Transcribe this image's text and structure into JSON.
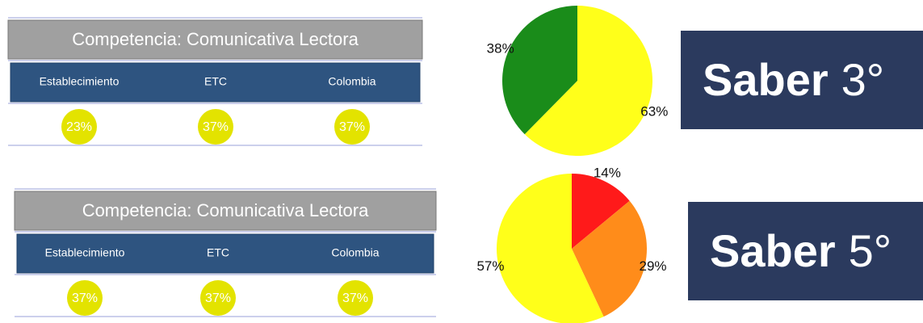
{
  "panels": [
    {
      "title": "Competencia: Comunicativa Lectora",
      "columns": [
        "Establecimiento",
        "ETC",
        "Colombia"
      ],
      "values": [
        "23%",
        "37%",
        "37%"
      ],
      "badge": {
        "word": "Saber",
        "grade": "3°"
      }
    },
    {
      "title": "Competencia: Comunicativa Lectora",
      "columns": [
        "Establecimiento",
        "ETC",
        "Colombia"
      ],
      "values": [
        "37%",
        "37%",
        "37%"
      ],
      "badge": {
        "word": "Saber",
        "grade": "5°"
      }
    }
  ],
  "chart_data": [
    {
      "type": "pie",
      "values": [
        63,
        38
      ],
      "value_labels": [
        "63%",
        "38%"
      ],
      "colors": [
        "#ffff1a",
        "#1a8c1a"
      ]
    },
    {
      "type": "pie",
      "values": [
        14,
        29,
        57
      ],
      "value_labels": [
        "14%",
        "29%",
        "57%"
      ],
      "colors": [
        "#ff1a1a",
        "#ff8c1a",
        "#ffff1a"
      ]
    }
  ]
}
